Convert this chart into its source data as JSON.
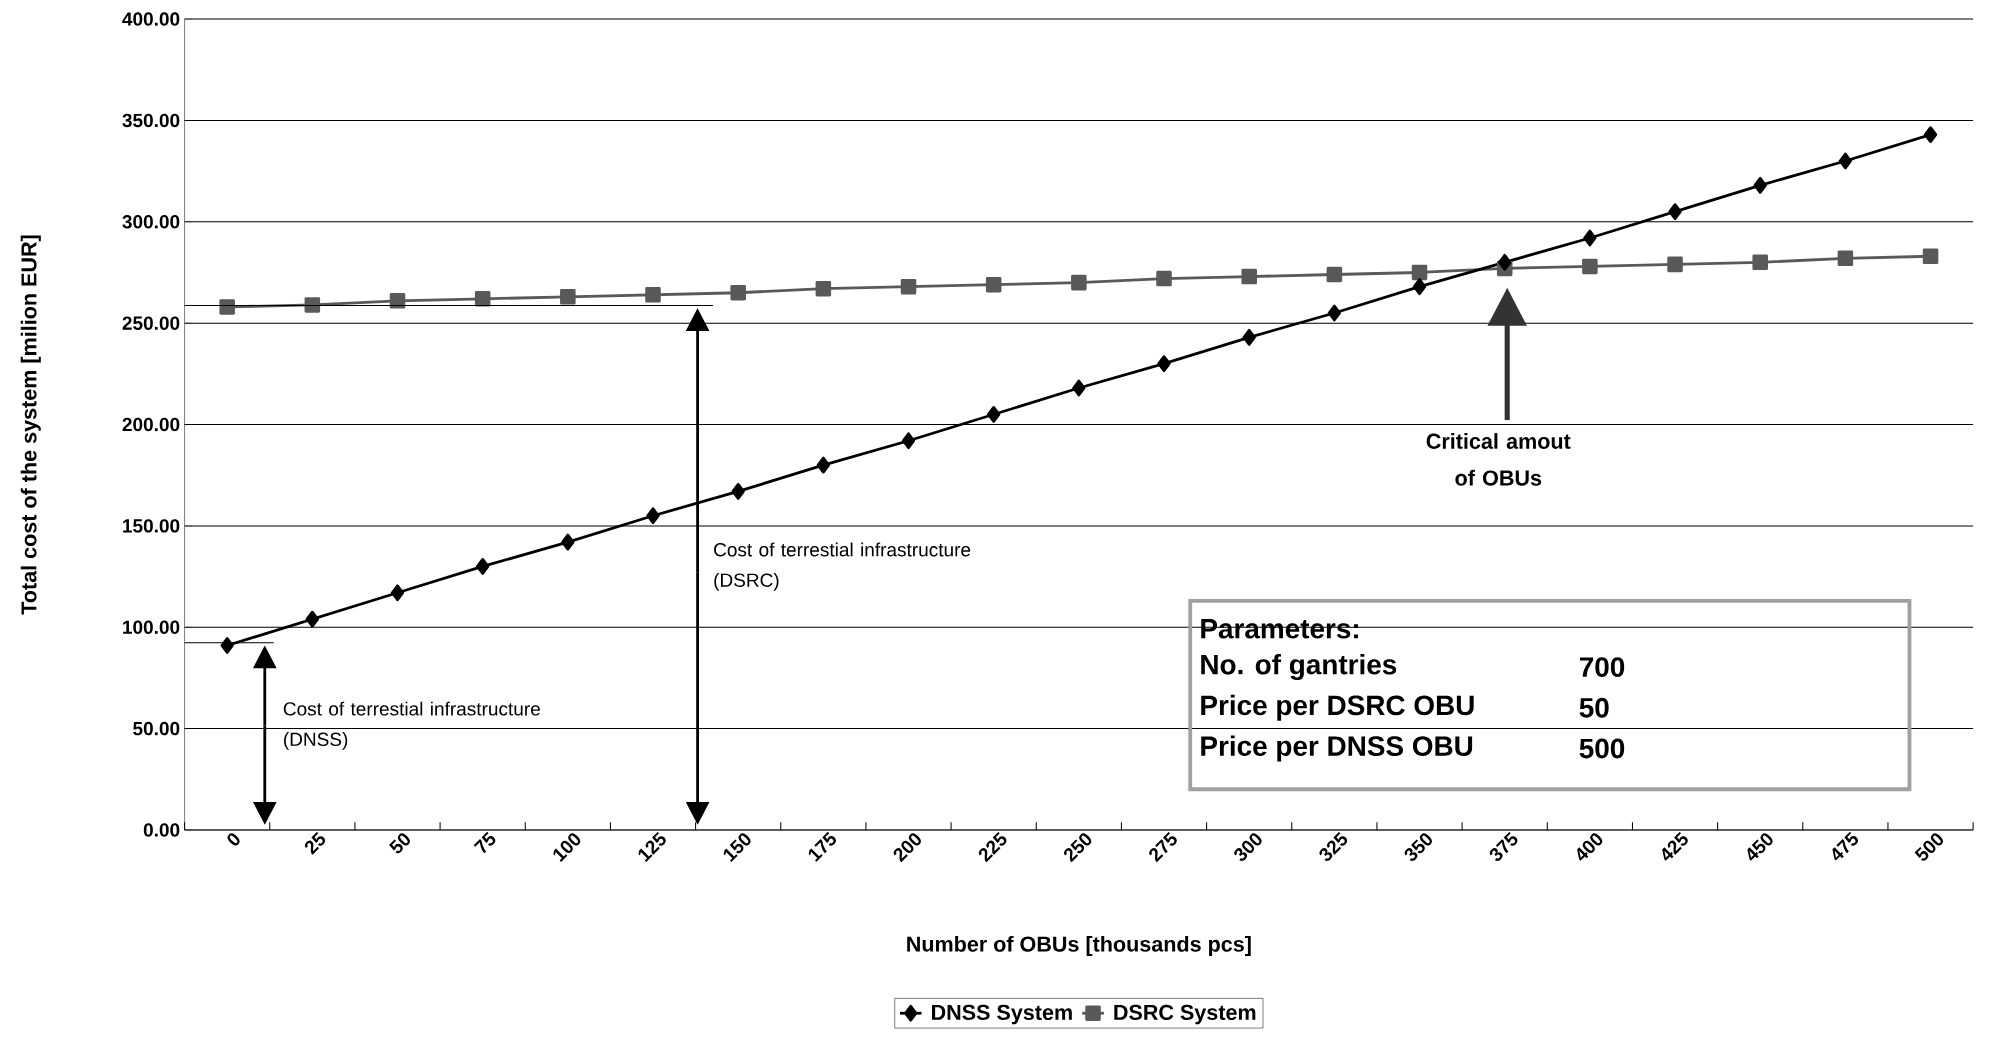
{
  "chart_data": {
    "type": "line",
    "xlabel": "Number of OBUs [thousands pcs]",
    "ylabel": "Total cost of the system [milion EUR]",
    "categories": [
      "0",
      "25",
      "50",
      "75",
      "100",
      "125",
      "150",
      "175",
      "200",
      "225",
      "250",
      "275",
      "300",
      "325",
      "350",
      "375",
      "400",
      "425",
      "450",
      "475",
      "500"
    ],
    "series": [
      {
        "name": "DNSS System",
        "color": "#000000",
        "marker": "diamond",
        "values": [
          91,
          104,
          117,
          130,
          142,
          155,
          167,
          180,
          192,
          205,
          218,
          230,
          243,
          255,
          268,
          280,
          292,
          305,
          318,
          330,
          343
        ]
      },
      {
        "name": "DSRC System",
        "color": "#595959",
        "marker": "square",
        "values": [
          258,
          259,
          261,
          262,
          263,
          264,
          265,
          267,
          268,
          269,
          270,
          272,
          273,
          274,
          275,
          277,
          278,
          279,
          280,
          282,
          283
        ]
      }
    ],
    "ylim": [
      0,
      400
    ],
    "yticks": [
      {
        "value": 0,
        "label": "0.00"
      },
      {
        "value": 50,
        "label": "50.00"
      },
      {
        "value": 100,
        "label": "100.00"
      },
      {
        "value": 150,
        "label": "150.00"
      },
      {
        "value": 200,
        "label": "200.00"
      },
      {
        "value": 250,
        "label": "250.00"
      },
      {
        "value": 300,
        "label": "300.00"
      },
      {
        "value": 350,
        "label": "350.00"
      },
      {
        "value": 400,
        "label": "400.00"
      }
    ],
    "grid": "y",
    "legend": "bottom",
    "annotations": [
      "Cost of terrestial infrastructure (DNSS)",
      "Cost of terrestial infrastructure (DSRC)",
      "Critical amout of OBUs",
      "Parameters:",
      "No. of gantries",
      "700",
      "Price per DSRC OBU",
      "50",
      "Price per DNSS OBU",
      "500"
    ]
  }
}
